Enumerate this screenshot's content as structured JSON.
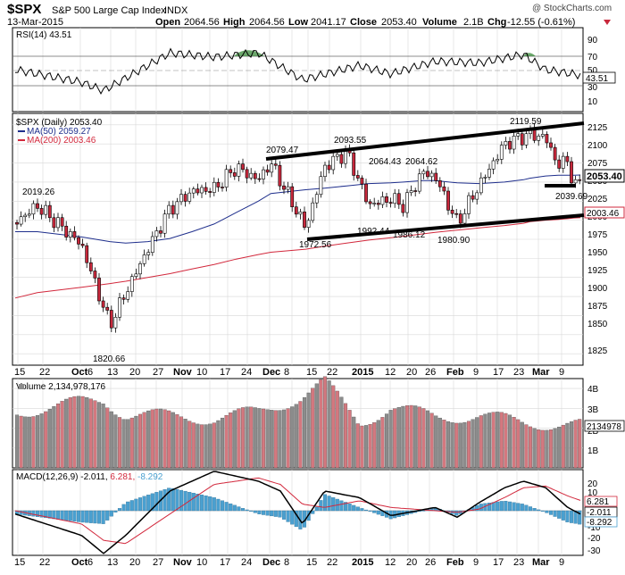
{
  "header": {
    "symbol": "$SPX",
    "name": "S&P 500 Large Cap Index",
    "exchange": "INDX",
    "date": "13-Mar-2015",
    "watermark": "@ StockCharts.com",
    "quote": {
      "open_label": "Open",
      "open": "2064.56",
      "high_label": "High",
      "high": "2064.56",
      "low_label": "Low",
      "low": "2041.17",
      "close_label": "Close",
      "close": "2053.40",
      "volume_label": "Volume",
      "volume": "2.1B",
      "chg_label": "Chg",
      "chg": "-12.55 (-0.61%)"
    }
  },
  "rsi_panel": {
    "label": "RSI(14) 43.51",
    "last_value": "43.51",
    "ticks": [
      "90",
      "70",
      "50",
      "30",
      "10"
    ]
  },
  "price_panel": {
    "legend": {
      "price": "$SPX (Daily) 2053.40",
      "ma50": "MA(50) 2059.27",
      "ma200": "MA(200) 2003.46"
    },
    "ticks": [
      "2125",
      "2100",
      "2075",
      "2050",
      "2025",
      "2000",
      "1975",
      "1950",
      "1925",
      "1900",
      "1875",
      "1850",
      "1825"
    ],
    "close_tag": "2053.40",
    "ma200_tag": "2003.46",
    "annotations": [
      "2119.59",
      "2093.55",
      "2079.47",
      "2064.43",
      "2064.62",
      "2019.26",
      "2039.69",
      "1992.44",
      "1986.12",
      "1980.90",
      "1972.56",
      "1820.66"
    ]
  },
  "volume_panel": {
    "label": "Volume 2,134,978,176",
    "last_tag": "2134978",
    "ticks": [
      "4B",
      "3B",
      "2B",
      "1B"
    ]
  },
  "macd_panel": {
    "label_name": "MACD(12,26,9)",
    "label_macd": "-2.011,",
    "label_signal": "6.281,",
    "label_hist": "-8.292",
    "tags": [
      "6.281",
      "-2.011",
      "-8.292"
    ],
    "ticks": [
      "20",
      "10",
      "0",
      "-10",
      "-20",
      "-30"
    ]
  },
  "x_axis": {
    "labels": [
      "15",
      "22",
      "Oct",
      "6",
      "13",
      "20",
      "27",
      "Nov",
      "10",
      "17",
      "24",
      "Dec",
      "8",
      "15",
      "22",
      "2015",
      "12",
      "20",
      "26",
      "Feb",
      "9",
      "17",
      "23",
      "Mar",
      "9"
    ]
  },
  "colors": {
    "up": "#ffffff",
    "down": "#c8283c",
    "ma50": "#1e2e8c",
    "ma200": "#d2283c",
    "vol_up": "#d4787f",
    "vol_down": "#8c8c8c",
    "macd_hist": "#4aa0d0",
    "signal": "#d2283c",
    "grid": "#d8d8d8"
  },
  "chart_data": [
    {
      "type": "line",
      "title": "RSI(14) 43.51",
      "ylim": [
        0,
        100
      ],
      "reference_lines": [
        70,
        50,
        30
      ],
      "x": [
        "Sep 15",
        "Oct 6",
        "Oct 13",
        "Oct 20",
        "Nov 3",
        "Nov 17",
        "Dec 1",
        "Dec 15",
        "Jan 2",
        "Jan 12",
        "Jan 26",
        "Feb 9",
        "Feb 23",
        "Mar 2",
        "Mar 13"
      ],
      "series": [
        {
          "name": "RSI(14)",
          "values": [
            50,
            35,
            25,
            40,
            70,
            65,
            70,
            38,
            55,
            45,
            60,
            58,
            68,
            50,
            43.51
          ]
        }
      ]
    },
    {
      "type": "line",
      "title": "$SPX (Daily) 2053.40",
      "ylim": [
        1810,
        2140
      ],
      "x": [
        "Sep 15",
        "Sep 22",
        "Oct 6",
        "Oct 15",
        "Oct 20",
        "Oct 27",
        "Nov 3",
        "Nov 10",
        "Nov 17",
        "Nov 24",
        "Dec 1",
        "Dec 5",
        "Dec 16",
        "Dec 22",
        "Dec 29",
        "Jan 5",
        "Jan 12",
        "Jan 16",
        "Jan 22",
        "Jan 26",
        "Feb 2",
        "Feb 9",
        "Feb 17",
        "Feb 23",
        "Feb 25",
        "Mar 2",
        "Mar 6",
        "Mar 9",
        "Mar 11",
        "Mar 13"
      ],
      "series": [
        {
          "name": "$SPX (Daily)",
          "values": [
            1997,
            2019,
            1968,
            1862,
            1905,
            1962,
            2015,
            2038,
            2041,
            2069,
            2053,
            2075,
            1990,
            2070,
            2090,
            2020,
            2028,
            2019,
            2063,
            2057,
            1996,
            2046,
            2100,
            2110,
            2113,
            2108,
            2071,
            2080,
            2040,
            2053.4
          ]
        },
        {
          "name": "MA(50)",
          "values": [
            1985,
            1985,
            1978,
            1972,
            1970,
            1972,
            1976,
            1985,
            1995,
            2010,
            2025,
            2035,
            2040,
            2042,
            2045,
            2048,
            2049,
            2050,
            2052,
            2052,
            2049,
            2048,
            2050,
            2053,
            2055,
            2058,
            2059,
            2059,
            2059,
            2059.27
          ]
        },
        {
          "name": "MA(200)",
          "values": [
            1898,
            1905,
            1912,
            1917,
            1920,
            1925,
            1930,
            1936,
            1942,
            1949,
            1955,
            1958,
            1962,
            1966,
            1970,
            1974,
            1977,
            1979,
            1982,
            1984,
            1987,
            1990,
            1993,
            1996,
            1998,
            2000,
            2001,
            2002,
            2003,
            2003.46
          ]
        }
      ],
      "annotations": [
        {
          "x": "Sep 19",
          "y": 2019.26
        },
        {
          "x": "Oct 15",
          "y": 1820.66
        },
        {
          "x": "Dec 5",
          "y": 2079.47
        },
        {
          "x": "Dec 16",
          "y": 1972.56
        },
        {
          "x": "Dec 29",
          "y": 2093.55
        },
        {
          "x": "Jan 6",
          "y": 1992.44
        },
        {
          "x": "Jan 12",
          "y": 2064.43
        },
        {
          "x": "Jan 16",
          "y": 1986.12
        },
        {
          "x": "Jan 22",
          "y": 2064.62
        },
        {
          "x": "Feb 2",
          "y": 1980.9
        },
        {
          "x": "Mar 2",
          "y": 2119.59
        },
        {
          "x": "Mar 11",
          "y": 2039.69
        }
      ]
    },
    {
      "type": "bar",
      "title": "Volume 2,134,978,176",
      "ylim": [
        0,
        4.5
      ],
      "ylabel": "B",
      "x": [
        "Sep 15",
        "Oct 6",
        "Oct 13",
        "Oct 20",
        "Nov 3",
        "Nov 17",
        "Dec 1",
        "Dec 15",
        "Dec 22",
        "Jan 2",
        "Jan 12",
        "Jan 26",
        "Feb 9",
        "Feb 23",
        "Mar 13"
      ],
      "values": [
        2.8,
        3.3,
        3.4,
        2.7,
        2.6,
        2.5,
        2.8,
        3.6,
        4.3,
        2.3,
        3.0,
        2.6,
        2.6,
        2.3,
        2.134978176
      ]
    },
    {
      "type": "line",
      "title": "MACD(12,26,9) -2.011, 6.281, -8.292",
      "ylim": [
        -30,
        25
      ],
      "x": [
        "Sep 15",
        "Oct 6",
        "Oct 13",
        "Oct 20",
        "Nov 3",
        "Nov 17",
        "Dec 1",
        "Dec 8",
        "Dec 15",
        "Dec 22",
        "Jan 2",
        "Jan 12",
        "Jan 26",
        "Feb 2",
        "Feb 9",
        "Feb 17",
        "Feb 23",
        "Mar 2",
        "Mar 9",
        "Mar 13"
      ],
      "series": [
        {
          "name": "MACD",
          "values": [
            -2,
            -15,
            -26,
            -15,
            12,
            24,
            18,
            12,
            -8,
            12,
            8,
            -3,
            2,
            -4,
            5,
            14,
            18,
            14,
            2,
            -2.011
          ]
        },
        {
          "name": "Signal",
          "values": [
            0,
            -8,
            -18,
            -20,
            -2,
            16,
            20,
            16,
            4,
            2,
            6,
            2,
            0,
            -1,
            1,
            8,
            14,
            15,
            9,
            6.281
          ]
        },
        {
          "name": "Histogram",
          "values": [
            -2,
            -7,
            -8,
            5,
            14,
            8,
            -2,
            -4,
            -12,
            10,
            2,
            -5,
            2,
            -3,
            4,
            6,
            4,
            -1,
            -7,
            -8.292
          ]
        }
      ]
    }
  ]
}
